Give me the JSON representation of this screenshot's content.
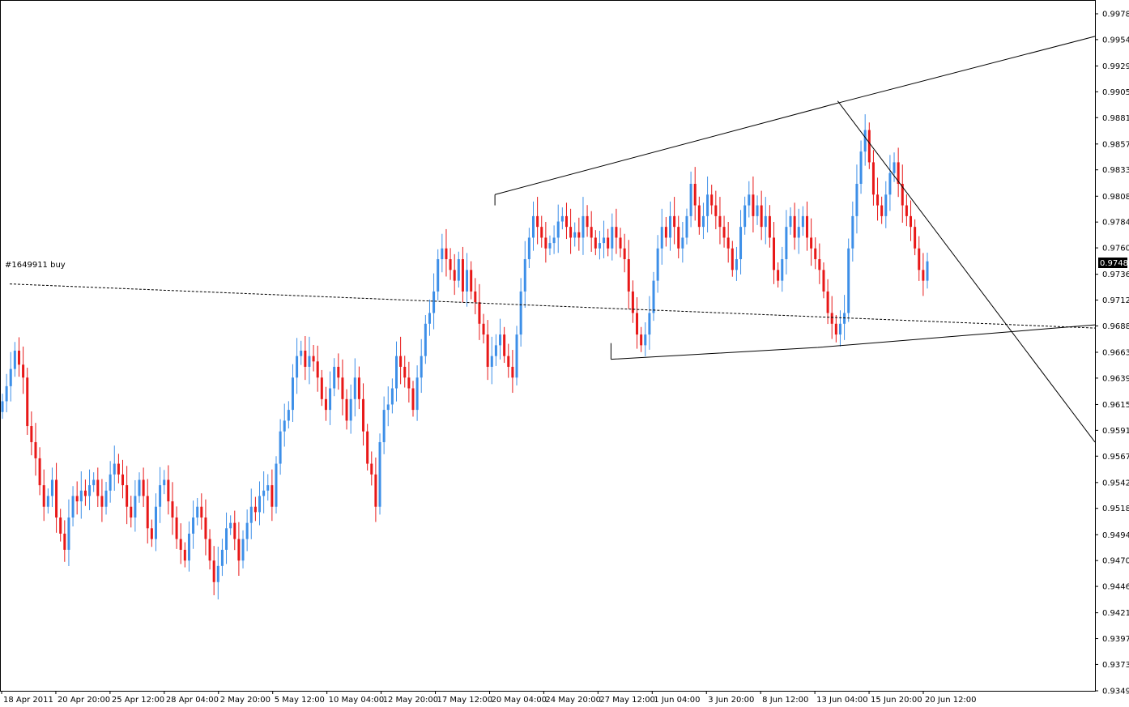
{
  "chart_data": {
    "type": "candlestick",
    "symbol_hint": "",
    "colors": {
      "bull": "#3d8fe8",
      "bear": "#e81818",
      "axis": "#000000",
      "background": "#ffffff"
    },
    "y_ticks": [
      "0.99780",
      "0.99540",
      "0.99295",
      "0.99055",
      "0.98815",
      "0.98570",
      "0.98330",
      "0.98085",
      "0.97845",
      "0.97605",
      "0.97360",
      "0.97120",
      "0.96880",
      "0.96635",
      "0.96395",
      "0.96150",
      "0.95910",
      "0.95670",
      "0.95425",
      "0.95185",
      "0.94940",
      "0.94700",
      "0.94460",
      "0.94215",
      "0.93975",
      "0.93735",
      "0.93490"
    ],
    "ylim": [
      0.9349,
      0.9978
    ],
    "x_ticks": [
      "18 Apr 2011",
      "20 Apr 20:00",
      "25 Apr 12:00",
      "28 Apr 04:00",
      "2 May 20:00",
      "5 May 12:00",
      "10 May 04:00",
      "12 May 20:00",
      "17 May 12:00",
      "20 May 04:00",
      "24 May 20:00",
      "27 May 12:00",
      "1 Jun 04:00",
      "3 Jun 20:00",
      "8 Jun 12:00",
      "13 Jun 04:00",
      "15 Jun 20:00",
      "20 Jun 12:00"
    ],
    "current_price": "0.97484",
    "order_label": "#1649911 buy",
    "order_line": {
      "start_price": 0.9727,
      "end_price": 0.9686
    },
    "trendlines": [
      {
        "name": "upper-channel",
        "points": [
          [
            0.452,
            0.981
          ],
          [
            0.765,
            0.9895
          ],
          [
            1.0,
            0.9957
          ]
        ]
      },
      {
        "name": "lower-channel",
        "points": [
          [
            0.558,
            0.9657
          ],
          [
            0.747,
            0.9668
          ],
          [
            1.0,
            0.9689
          ]
        ]
      },
      {
        "name": "descending-line",
        "points": [
          [
            0.765,
            0.9897
          ],
          [
            1.0,
            0.958
          ]
        ]
      }
    ],
    "closes": [
      0.9618,
      0.9632,
      0.9648,
      0.9665,
      0.9652,
      0.964,
      0.9595,
      0.958,
      0.9565,
      0.954,
      0.952,
      0.953,
      0.9545,
      0.951,
      0.9495,
      0.948,
      0.951,
      0.953,
      0.9525,
      0.9535,
      0.953,
      0.954,
      0.9545,
      0.953,
      0.952,
      0.9535,
      0.955,
      0.956,
      0.955,
      0.954,
      0.952,
      0.951,
      0.953,
      0.9545,
      0.953,
      0.95,
      0.949,
      0.952,
      0.954,
      0.9545,
      0.9525,
      0.951,
      0.949,
      0.948,
      0.947,
      0.9495,
      0.951,
      0.952,
      0.951,
      0.949,
      0.947,
      0.945,
      0.9465,
      0.948,
      0.95,
      0.9505,
      0.949,
      0.947,
      0.949,
      0.9505,
      0.952,
      0.9515,
      0.953,
      0.9535,
      0.954,
      0.952,
      0.956,
      0.959,
      0.96,
      0.961,
      0.964,
      0.966,
      0.9665,
      0.965,
      0.966,
      0.9655,
      0.964,
      0.962,
      0.961,
      0.963,
      0.965,
      0.964,
      0.962,
      0.96,
      0.962,
      0.964,
      0.962,
      0.959,
      0.956,
      0.955,
      0.952,
      0.958,
      0.961,
      0.9615,
      0.963,
      0.966,
      0.965,
      0.964,
      0.963,
      0.961,
      0.964,
      0.966,
      0.969,
      0.97,
      0.972,
      0.975,
      0.976,
      0.975,
      0.974,
      0.973,
      0.975,
      0.972,
      0.974,
      0.972,
      0.971,
      0.969,
      0.968,
      0.965,
      0.966,
      0.967,
      0.968,
      0.966,
      0.965,
      0.964,
      0.968,
      0.972,
      0.975,
      0.977,
      0.979,
      0.978,
      0.977,
      0.976,
      0.9765,
      0.977,
      0.9785,
      0.979,
      0.978,
      0.977,
      0.9775,
      0.977,
      0.979,
      0.978,
      0.977,
      0.976,
      0.9765,
      0.977,
      0.976,
      0.978,
      0.977,
      0.976,
      0.975,
      0.972,
      0.97,
      0.968,
      0.967,
      0.968,
      0.97,
      0.973,
      0.976,
      0.978,
      0.977,
      0.979,
      0.978,
      0.976,
      0.977,
      0.979,
      0.982,
      0.98,
      0.978,
      0.979,
      0.981,
      0.98,
      0.979,
      0.978,
      0.977,
      0.976,
      0.974,
      0.975,
      0.978,
      0.98,
      0.981,
      0.979,
      0.98,
      0.978,
      0.979,
      0.977,
      0.974,
      0.973,
      0.975,
      0.978,
      0.979,
      0.977,
      0.978,
      0.979,
      0.977,
      0.976,
      0.975,
      0.974,
      0.972,
      0.97,
      0.969,
      0.968,
      0.969,
      0.97,
      0.976,
      0.979,
      0.982,
      0.985,
      0.987,
      0.984,
      0.981,
      0.98,
      0.979,
      0.981,
      0.983,
      0.984,
      0.982,
      0.98,
      0.979,
      0.978,
      0.976,
      0.974,
      0.973,
      0.9748
    ]
  }
}
